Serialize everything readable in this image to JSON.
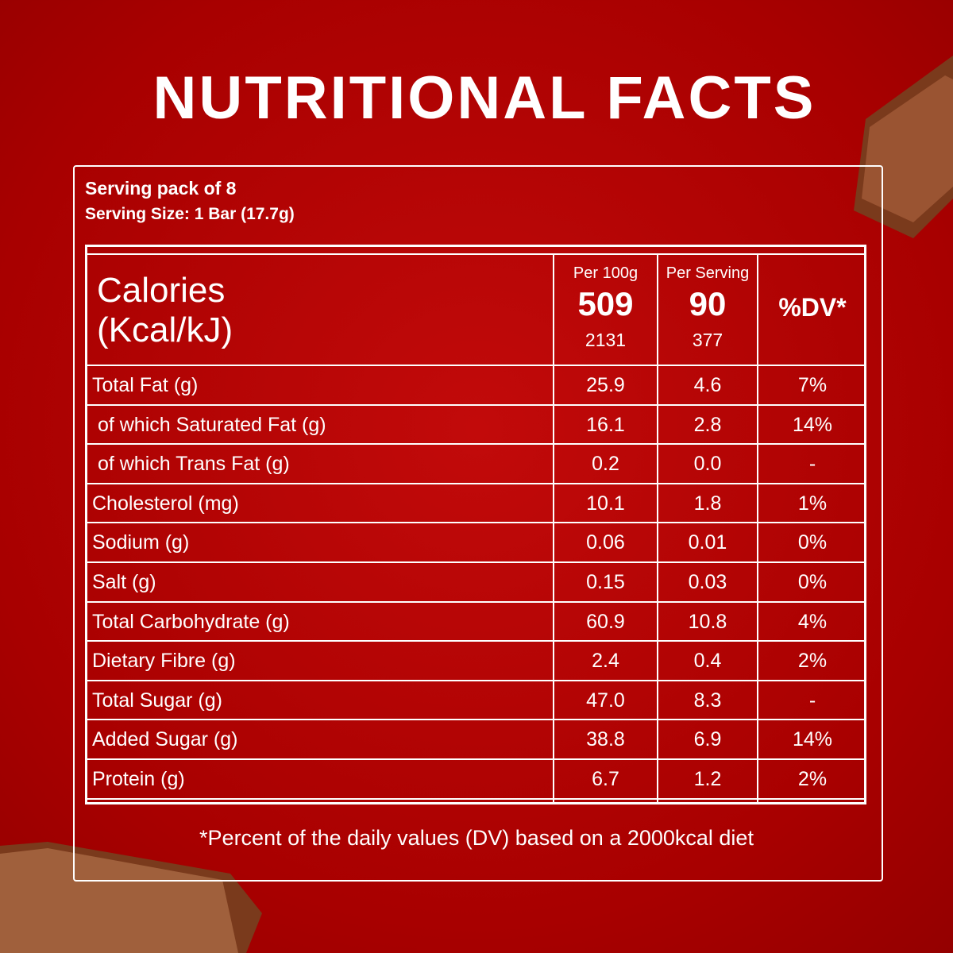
{
  "header": {
    "title": "NUTRITIONAL FACTS"
  },
  "serving": {
    "pack": "Serving pack of 8",
    "size": "Serving Size: 1 Bar (17.7g)"
  },
  "table": {
    "calories": {
      "label": "Calories",
      "unit": "(Kcal/kJ)",
      "per100g_label": "Per 100g",
      "per100g_kcal": "509",
      "per100g_kj": "2131",
      "serving_label": "Per Serving",
      "serving_kcal": "90",
      "serving_kj": "377",
      "dv_label": "%DV*"
    },
    "rows": [
      [
        "Total Fat (g)",
        "25.9",
        "4.6",
        "7%"
      ],
      [
        " of which Saturated Fat (g)",
        "16.1",
        "2.8",
        "14%"
      ],
      [
        " of which Trans Fat (g)",
        "0.2",
        "0.0",
        "-"
      ],
      [
        "Cholesterol (mg)",
        "10.1",
        "1.8",
        "1%"
      ],
      [
        "Sodium (g)",
        "0.06",
        "0.01",
        "0%"
      ],
      [
        "Salt (g)",
        "0.15",
        "0.03",
        "0%"
      ],
      [
        "Total Carbohydrate (g)",
        "60.9",
        "10.8",
        "4%"
      ],
      [
        "Dietary Fibre (g)",
        "2.4",
        "0.4",
        "2%"
      ],
      [
        "Total Sugar (g)",
        "47.0",
        "8.3",
        "-"
      ],
      [
        "Added Sugar (g)",
        "38.8",
        "6.9",
        "14%"
      ],
      [
        "Protein (g)",
        "6.7",
        "1.2",
        "2%"
      ]
    ]
  },
  "footnote": "*Percent of the daily values (DV) based on a 2000kcal diet"
}
